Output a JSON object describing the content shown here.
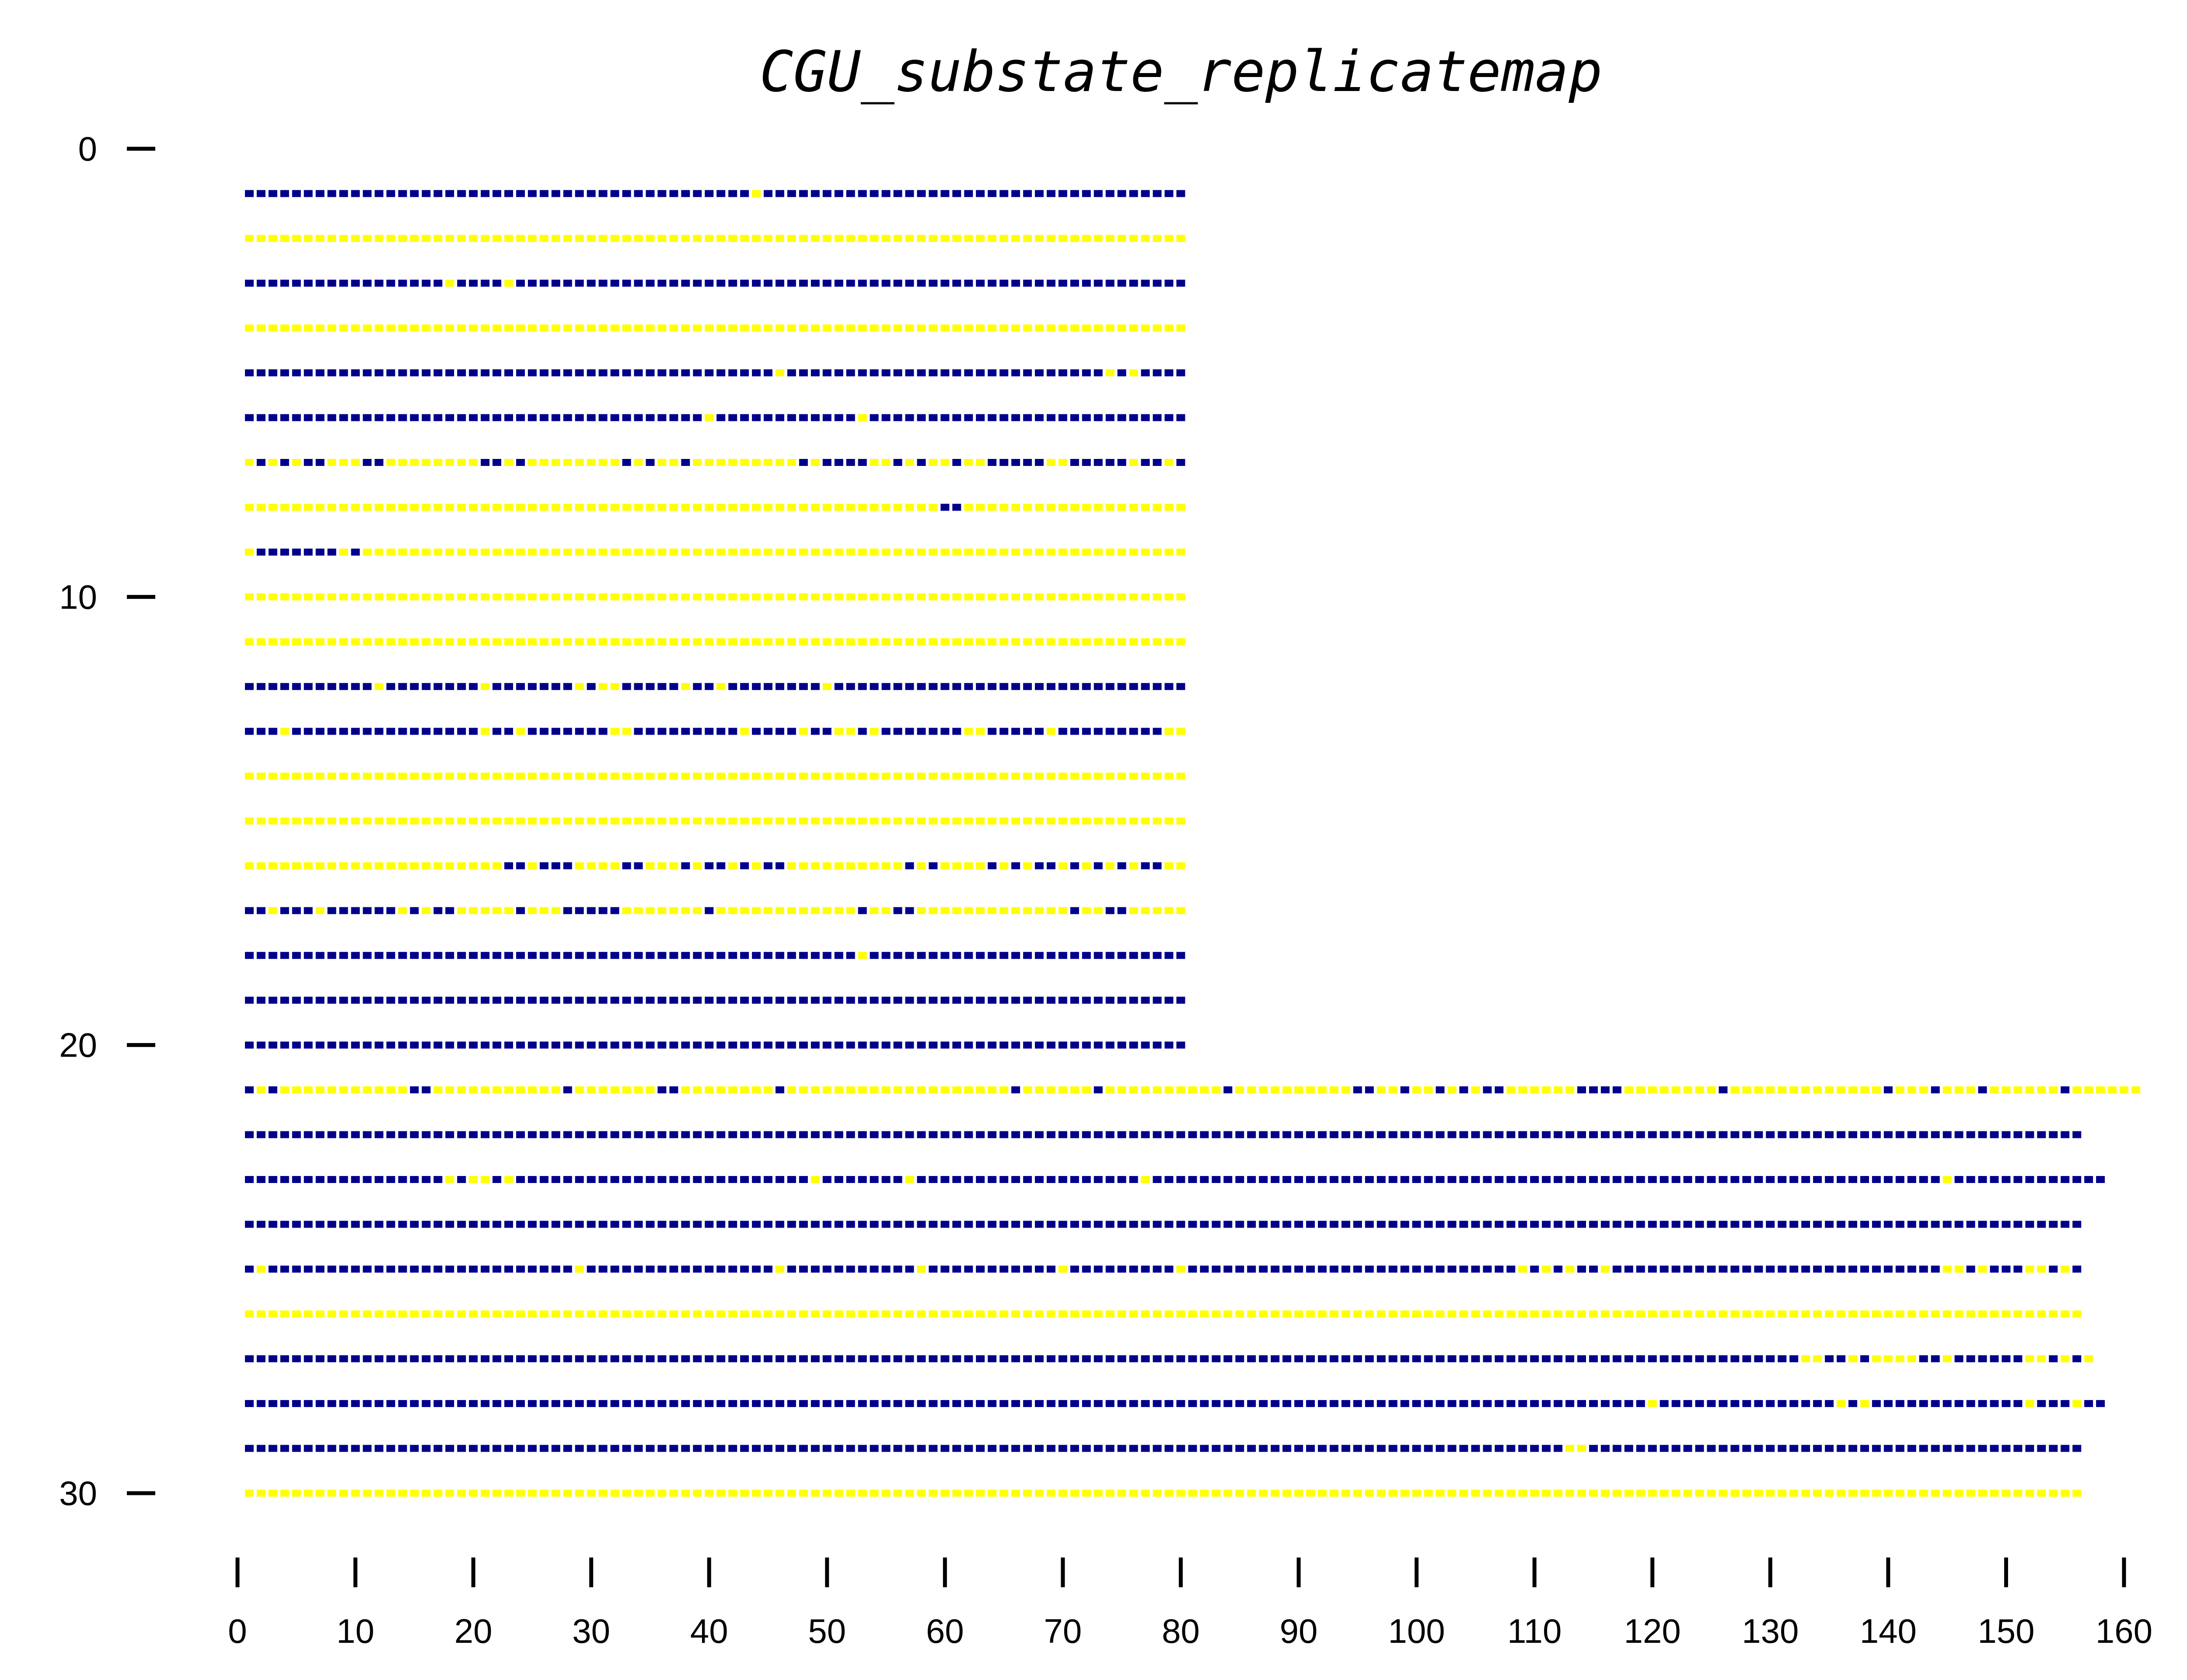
{
  "chart_data": {
    "type": "scatter",
    "title": "CGU_substate_replicatemap",
    "xlabel": "",
    "ylabel": "",
    "xlim": [
      0,
      160
    ],
    "ylim": [
      0,
      30
    ],
    "y_inverted": true,
    "xticks": [
      "0",
      "10",
      "20",
      "30",
      "40",
      "50",
      "60",
      "70",
      "80",
      "90",
      "100",
      "110",
      "120",
      "130",
      "140",
      "150",
      "160"
    ],
    "yticks": [
      "0",
      "10",
      "20",
      "30"
    ],
    "legend": "none",
    "grid": false,
    "colors": {
      "state_0": "#00008b",
      "state_1": "#ffff00"
    },
    "row_encoding": "each row lists x positions 1..N in order; 'B' = dark blue marker, 'Y' = yellow marker",
    "rows": [
      {
        "y": 1,
        "x_start": 1,
        "states": "BBBBBBBBBBBBBBBBBBBBBBBBBBBBBBBBBBBBBBBBBBBYBBBBBBBBBBBBBBBBBBBBBBBBBBBBBBBBBBBB"
      },
      {
        "y": 2,
        "x_start": 1,
        "states": "YYYYYYYYYYYYYYYYYYYYYYYYYYYYYYYYYYYYYYYYYYYYYYYYYYYYYYYYYYYYYYYYYYYYYYYYYYYYYYYY"
      },
      {
        "y": 3,
        "x_start": 1,
        "states": "BBBBBBBBBBBBBBBBBYBBBBYBBBBBBBBBBBBBBBBBBBBBBBBBBBBBBBBBBBBBBBBBBBBBBBBBBBBBBBBB"
      },
      {
        "y": 4,
        "x_start": 1,
        "states": "YYYYYYYYYYYYYYYYYYYYYYYYYYYYYYYYYYYYYYYYYYYYYYYYYYYYYYYYYYYYYYYYYYYYYYYYYYYYYYYY"
      },
      {
        "y": 5,
        "x_start": 1,
        "states": "BBBBBBBBBBBBBBBBBBBBBBBBBBBBBBBBBBBBBBBBBBBBBYBBBBBBBBBBBBBBBBBBBBBBBBBBBYBYBBBB"
      },
      {
        "y": 6,
        "x_start": 1,
        "states": "BBBBBBBBBBBBBBBBBBBBBBBBBBBBBBBBBBBBBBBYBBBBBBBBBBBBYBBBBBBBBBBBBBBBBBBBBBBBBBBB"
      },
      {
        "y": 7,
        "x_start": 1,
        "states": "YBYBYBBYYYBBYYYYYYYYBBYBYYYYYYYYBYBYYBYYYYYYYYYBYBBBBYYBYBYYBYYBBBBBYYBBBBBYBBYB"
      },
      {
        "y": 8,
        "x_start": 1,
        "states": "YYYYYYYYYYYYYYYYYYYYYYYYYYYYYYYYYYYYYYYYYYYYYYYYYYYYYYYYYYYBBYYYYYYYYYYYYYYYYYYY"
      },
      {
        "y": 9,
        "x_start": 1,
        "states": "YBBBBBBBYBYYYYYYYYYYYYYYYYYYYYYYYYYYYYYYYYYYYYYYYYYYYYYYYYYYYYYYYYYYYYYYYYYYYYYY"
      },
      {
        "y": 10,
        "x_start": 1,
        "states": "YYYYYYYYYYYYYYYYYYYYYYYYYYYYYYYYYYYYYYYYYYYYYYYYYYYYYYYYYYYYYYYYYYYYYYYYYYYYYYYY"
      },
      {
        "y": 11,
        "x_start": 1,
        "states": "YYYYYYYYYYYYYYYYYYYYYYYYYYYYYYYYYYYYYYYYYYYYYYYYYYYYYYYYYYYYYYYYYYYYYYYYYYYYYYYY"
      },
      {
        "y": 12,
        "x_start": 1,
        "states": "BBBBBBBBBBBYBBBBBBBBYBBBBBBBYBYYBBBBBYBBYBBBBBBBBYBBBBBBBBBBBBBBBBBBBBBBBBBBBBBB"
      },
      {
        "y": 13,
        "x_start": 1,
        "states": "BBBYBBBBBBBBBBBBBBBBYBBYBBBBBBBYYBBBBBBBBBYBBBBYBBYYBYBBBBBBBYYBBBBBYBBBBBBBBBYY"
      },
      {
        "y": 14,
        "x_start": 1,
        "states": "YYYYYYYYYYYYYYYYYYYYYYYYYYYYYYYYYYYYYYYYYYYYYYYYYYYYYYYYYYYYYYYYYYYYYYYYYYYYYYYY"
      },
      {
        "y": 15,
        "x_start": 1,
        "states": "YYYYYYYYYYYYYYYYYYYYYYYYYYYYYYYYYYYYYYYYYYYYYYYYYYYYYYYYYYYYYYYYYYYYYYYYYYYYYYYY"
      },
      {
        "y": 16,
        "x_start": 1,
        "states": "YYYYYYYYYYYYYYYYYYYYYYBBYBBBYYYYBBYYYBYBBYBYBBYYYYYYYYYYBYBYYYYBYBYBBYBYBYBYBBYY"
      },
      {
        "y": 17,
        "x_start": 1,
        "states": "BBYBBBYBBBBBBYBYBBYYYYYBYYYBBBBBYYYYYYYBYYYYYYYYYYYYBYYBBYYYYYYYYYYYYYBYYBBYYYYY"
      },
      {
        "y": 18,
        "x_start": 1,
        "states": "BBBBBBBBBBBBBBBBBBBBBBBBBBBBBBBBBBBBBBBBBBBBBBBBBBBBYBBBBBBBBBBBBBBBBBBBBBBBBBBB"
      },
      {
        "y": 19,
        "x_start": 1,
        "states": "BBBBBBBBBBBBBBBBBBBBBBBBBBBBBBBBBBBBBBBBBBBBBBBBBBBBBBBBBBBBBBBBBBBBBBBBBBBBBBBB"
      },
      {
        "y": 20,
        "x_start": 1,
        "states": "BBBBBBBBBBBBBBBBBBBBBBBBBBBBBBBBBBBBBBBBBBBBBBBBBBBBBBBBBBBBBBBBBBBBBBBBBBBBBBBB"
      },
      {
        "y": 21,
        "x_start": 1,
        "states": "BYBYYYYYYYYYYYBBYYYYYYYYYYYBYYYYYYYBBYYYYYYYYBYYYYYYYYYYYYYYYYYYYBYYYYYYBYYYYYYYYYYBYYYYYYYYYYBBYYBYYBYBYBBYYYYYYBBBBYYYYYYYYBYYYYYYYYYYYYYBYYYBYYYBYYYYYYBYYYYYY"
      },
      {
        "y": 22,
        "x_start": 1,
        "states": "BBBBBBBBBBBBBBBBBBBBBBBBBBBBBBBBBBBBBBBBBBBBBBBBBBBBBBBBBBBBBBBBBBBBBBBBBBBBBBBBBBBBBBBBBBBBBBBBBBBBBBBBBBBBBBBBBBBBBBBBBBBBBBBBBBBBBBBBBBBBBBBBBBBBBBBBBBBB"
      },
      {
        "y": 23,
        "x_start": 1,
        "states": "BBBBBBBBBBBBBBBBBYBYYBYBBBBBBBBBBBBBBBBBBBBBBBBBYBBBBBBBYBBBBBBBBBBBBBBBBBBBYBBBBBBBBBBBBBBBBBBBBBBBBBBBBBBBBBBBBBBBBBBBBBBBBBBBBBBBBBBBBBBBBBBBYBBBBBBBBBBBBB"
      },
      {
        "y": 24,
        "x_start": 1,
        "states": "BBBBBBBBBBBBBBBBBBBBBBBBBBBBBBBBBBBBBBBBBBBBBBBBBBBBBBBBBBBBBBBBBBBBBBBBBBBBBBBBBBBBBBBBBBBBBBBBBBBBBBBBBBBBBBBBBBBBBBBBBBBBBBBBBBBBBBBBBBBBBBBBBBBBBBBBBBBB"
      },
      {
        "y": 25,
        "x_start": 1,
        "states": "BYBBBBBBBBBBBBBBBBBBBBBBBBBBYBBBBBBBBBBBBBBBBYBBBBBBBBBBBYBBBBBBBBBBBYBBBBBBBBBYBBBBBBBBBBBBBBBBBBBBBBBBBBBBYBYBYBBYBBBBBBBBBBBBBBBBBBBBBBBBBBBBYYBYBBBYYBYB"
      },
      {
        "y": 26,
        "x_start": 1,
        "states": "YYYYYYYYYYYYYYYYYYYYYYYYYYYYYYYYYYYYYYYYYYYYYYYYYYYYYYYYYYYYYYYYYYYYYYYYYYYYYYYYYYYYYYYYYYYYYYYYYYYYYYYYYYYYYYYYYYYYYYYYYYYYYYYYYYYYYYYYYYYYYYYYYYYYYYYYYYYY"
      },
      {
        "y": 27,
        "x_start": 1,
        "states": "BBBBBBBBBBBBBBBBBBBBBBBBBBBBBBBBBBBBBBBBBBBBBBBBBBBBBBBBBBBBBBBBBBBBBBBBBBBBBBBBBBBBBBBBBBBBBBBBBBBBBBBBBBBBBBBBBBBBBBBBBBBBBBBBBBBBYYBBYBYYYYBBYBBBBBBYYBYBY"
      },
      {
        "y": 28,
        "x_start": 1,
        "states": "BBBBBBBBBBBBBBBBBBBBBBBBBBBBBBBBBBBBBBBBBBBBBBBBBBBBBBBBBBBBBBBBBBBBBBBBBBBBBBBBBBBBBBBBBBBBBBBBBBBBBBBBBBBBBBBBBBBBBBBYBBBBBBBBBBBBBBBYBYBBBBBBBBBBBBBYBBBYBB"
      },
      {
        "y": 29,
        "x_start": 1,
        "states": "BBBBBBBBBBBBBBBBBBBBBBBBBBBBBBBBBBBBBBBBBBBBBBBBBBBBBBBBBBBBBBBBBBBBBBBBBBBBBBBBBBBBBBBBBBBBBBBBBBBBBBBBBBBBBBBBYYBBBBBBBBBBBBBBBBBBBBBBBBBBBBBBBBBBBBBBBBBB"
      },
      {
        "y": 30,
        "x_start": 1,
        "states": "YYYYYYYYYYYYYYYYYYYYYYYYYYYYYYYYYYYYYYYYYYYYYYYYYYYYYYYYYYYYYYYYYYYYYYYYYYYYYYYYYYYYYYYYYYYYYYYYYYYYYYYYYYYYYYYYYYYYYYYYYYYYYYYYYYYYYYYYYYYYYYYYYYYYYYYYYYYY"
      }
    ]
  }
}
